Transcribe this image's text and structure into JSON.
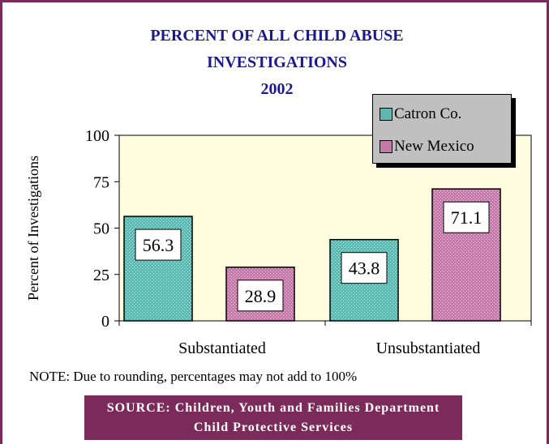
{
  "chart_data": {
    "type": "bar",
    "title_lines": [
      "PERCENT OF ALL CHILD ABUSE",
      "INVESTIGATIONS",
      "2002"
    ],
    "ylabel": "Percent of Investigations",
    "xlabel": "",
    "ylim": [
      0,
      100
    ],
    "yticks": [
      0,
      25,
      50,
      75,
      100
    ],
    "categories": [
      "Substantiated",
      "Unsubstantiated"
    ],
    "series": [
      {
        "name": "Catron Co.",
        "values": [
          56.3,
          43.8
        ],
        "color": "#5fb8b0"
      },
      {
        "name": "New Mexico",
        "values": [
          28.9,
          71.1
        ],
        "color": "#c47aa6"
      }
    ],
    "data_labels": [
      [
        "56.3",
        "43.8"
      ],
      [
        "28.9",
        "71.1"
      ]
    ],
    "legend_position": "top-right",
    "plot_background": "#fffde0",
    "grid": false
  },
  "note": "NOTE: Due to rounding, percentages may not add to 100%",
  "source": {
    "line1": "SOURCE: Children, Youth and Families Department",
    "line2": "Child Protective Services"
  }
}
